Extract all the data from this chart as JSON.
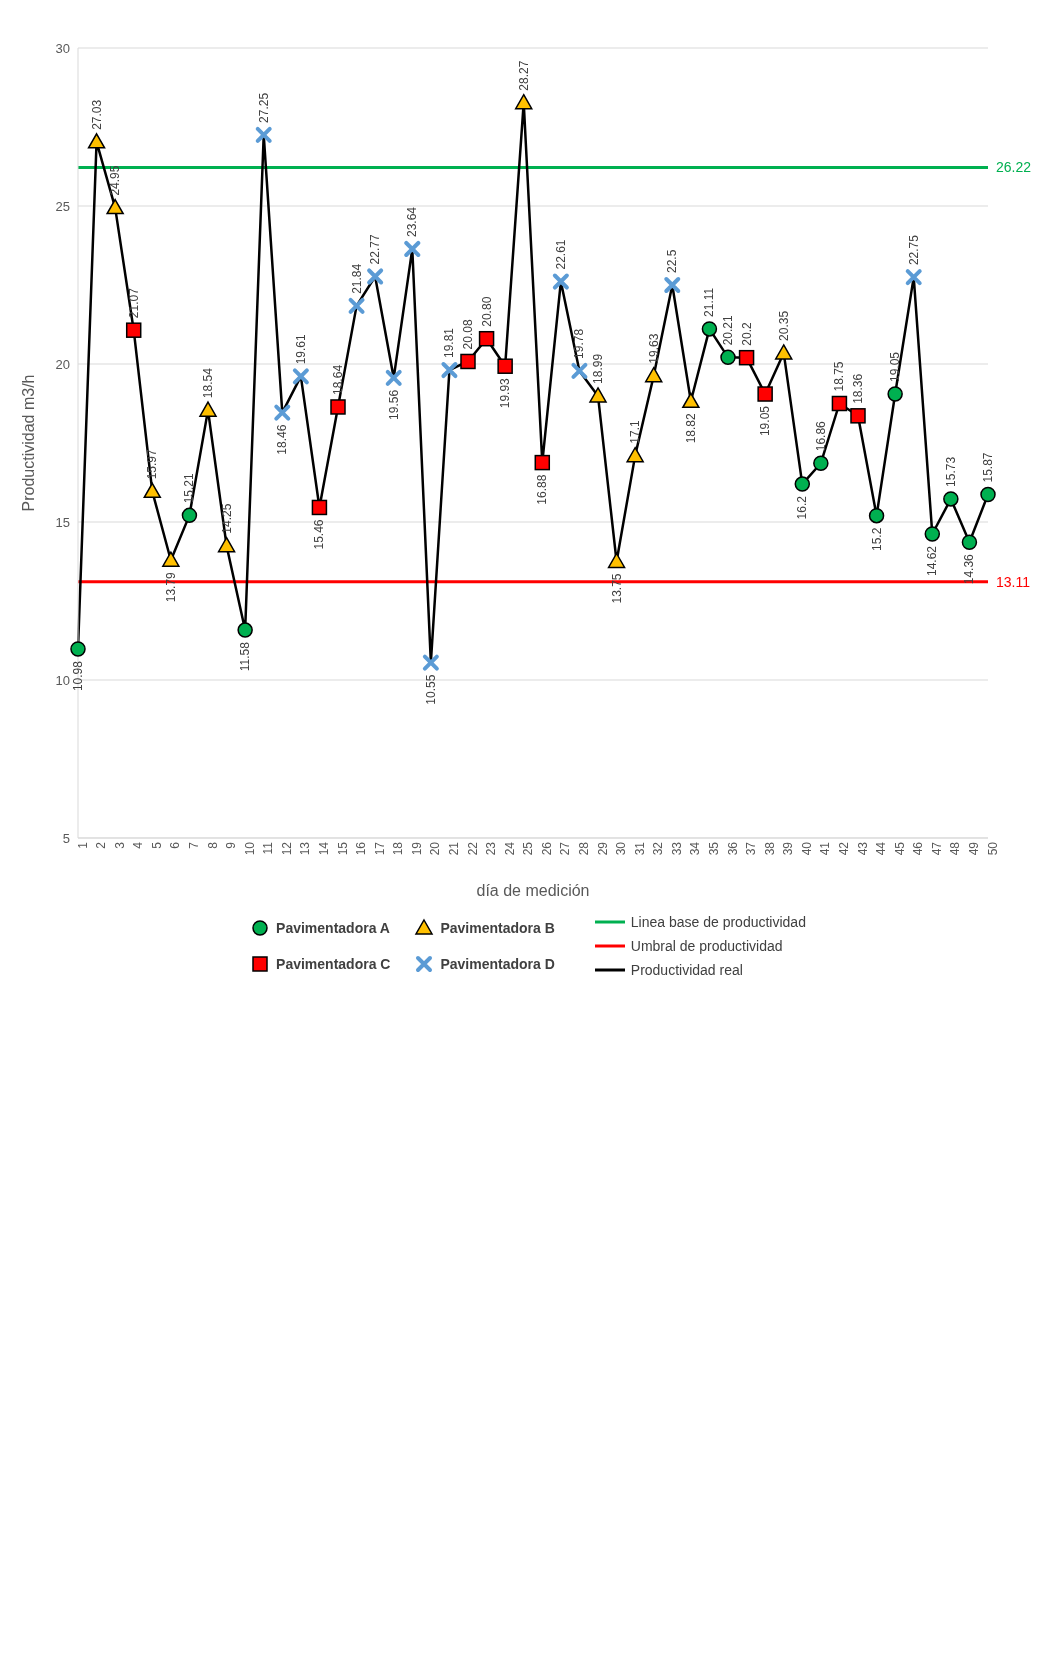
{
  "chart_data": {
    "type": "line",
    "xlabel": "día de medición",
    "ylabel": "Productividad m3/h",
    "categories": [
      "1",
      "2",
      "3",
      "4",
      "5",
      "6",
      "7",
      "8",
      "9",
      "10",
      "11",
      "12",
      "13",
      "14",
      "15",
      "16",
      "17",
      "18",
      "19",
      "20",
      "21",
      "22",
      "23",
      "24",
      "25",
      "26",
      "27",
      "28",
      "29",
      "30",
      "31",
      "32",
      "33",
      "34",
      "35",
      "36",
      "37",
      "38",
      "39",
      "40",
      "41",
      "42",
      "43",
      "44",
      "45",
      "46",
      "47",
      "48",
      "49",
      "50"
    ],
    "ylim": [
      5,
      30
    ],
    "yticks": [
      5,
      10,
      15,
      20,
      25,
      30
    ],
    "grid": "y",
    "legend": "bottom",
    "series": [
      {
        "name": "Linea base de productividad",
        "color": "#00b050",
        "marker": "none",
        "values": [
          26.22,
          26.22,
          26.22,
          26.22,
          26.22,
          26.22,
          26.22,
          26.22,
          26.22,
          26.22,
          26.22,
          26.22,
          26.22,
          26.22,
          26.22,
          26.22,
          26.22,
          26.22,
          26.22,
          26.22,
          26.22,
          26.22,
          26.22,
          26.22,
          26.22,
          26.22,
          26.22,
          26.22,
          26.22,
          26.22,
          26.22,
          26.22,
          26.22,
          26.22,
          26.22,
          26.22,
          26.22,
          26.22,
          26.22,
          26.22,
          26.22,
          26.22,
          26.22,
          26.22,
          26.22,
          26.22,
          26.22,
          26.22,
          26.22,
          26.22
        ],
        "value_labels": [
          null,
          null,
          null,
          null,
          null,
          null,
          null,
          null,
          null,
          null,
          null,
          null,
          null,
          null,
          null,
          null,
          null,
          null,
          null,
          null,
          null,
          null,
          null,
          null,
          null,
          null,
          null,
          null,
          null,
          null,
          null,
          null,
          null,
          null,
          null,
          null,
          null,
          null,
          null,
          null,
          null,
          null,
          null,
          null,
          null,
          null,
          null,
          null,
          null,
          "26.22"
        ]
      },
      {
        "name": "Umbral de productividad",
        "color": "#ff0000",
        "marker": "none",
        "values": [
          13.11,
          13.11,
          13.11,
          13.11,
          13.11,
          13.11,
          13.11,
          13.11,
          13.11,
          13.11,
          13.11,
          13.11,
          13.11,
          13.11,
          13.11,
          13.11,
          13.11,
          13.11,
          13.11,
          13.11,
          13.11,
          13.11,
          13.11,
          13.11,
          13.11,
          13.11,
          13.11,
          13.11,
          13.11,
          13.11,
          13.11,
          13.11,
          13.11,
          13.11,
          13.11,
          13.11,
          13.11,
          13.11,
          13.11,
          13.11,
          13.11,
          13.11,
          13.11,
          13.11,
          13.11,
          13.11,
          13.11,
          13.11,
          13.11,
          13.11
        ],
        "value_labels": [
          null,
          null,
          null,
          null,
          null,
          null,
          null,
          null,
          null,
          null,
          null,
          null,
          null,
          null,
          null,
          null,
          null,
          null,
          null,
          null,
          null,
          null,
          null,
          null,
          null,
          null,
          null,
          null,
          null,
          null,
          null,
          null,
          null,
          null,
          null,
          null,
          null,
          null,
          null,
          null,
          null,
          null,
          null,
          null,
          null,
          null,
          null,
          null,
          null,
          "13.11"
        ]
      },
      {
        "name": "Productividad real",
        "color": "#000000",
        "marker": "none",
        "values": [
          10.98,
          27.03,
          24.95,
          21.07,
          15.97,
          13.79,
          15.21,
          18.54,
          14.25,
          11.58,
          27.25,
          18.46,
          19.61,
          15.46,
          18.64,
          21.84,
          22.77,
          19.56,
          23.64,
          10.55,
          19.81,
          20.08,
          20.8,
          19.93,
          28.27,
          16.88,
          22.61,
          19.78,
          18.99,
          13.75,
          17.1,
          19.63,
          22.5,
          18.82,
          21.11,
          20.21,
          20.2,
          19.05,
          20.35,
          16.2,
          16.86,
          18.75,
          18.36,
          15.2,
          19.05,
          22.75,
          14.62,
          15.73,
          14.36,
          15.87
        ],
        "value_labels": [
          "10.98",
          "27.03",
          "24.95",
          "21.07",
          "15.97",
          "13.79",
          "15.21",
          "18.54",
          "14.25",
          "11.58",
          "27.25",
          "18.46",
          "19.61",
          "15.46",
          "18.64",
          "21.84",
          "22.77",
          "19.56",
          "23.64",
          "10.55",
          "19.81",
          "20.08",
          "20.80",
          "19.93",
          "28.27",
          "16.88",
          "22.61",
          "19.78",
          "18.99",
          "13.75",
          "17.1",
          "19.63",
          "22.5",
          "18.82",
          "21.11",
          "20.21",
          "20.2",
          "19.05",
          "20.35",
          "16.2",
          "16.86",
          "18.75",
          "18.36",
          "15.2",
          "19.05",
          "22.75",
          "14.62",
          "15.73",
          "14.36",
          "15.87"
        ]
      },
      {
        "name": "Pavimentadora A",
        "type": "scatter",
        "color": "#00b050",
        "marker": "circle",
        "x": [
          "1",
          "7",
          "10",
          "35",
          "36",
          "40",
          "41",
          "44",
          "45",
          "47",
          "48",
          "49",
          "50"
        ],
        "values": [
          10.98,
          15.21,
          11.58,
          21.11,
          20.21,
          16.2,
          16.86,
          15.2,
          19.05,
          14.62,
          15.73,
          14.36,
          15.87
        ]
      },
      {
        "name": "Pavimentadora B",
        "type": "scatter",
        "color": "#ffc000",
        "marker": "triangle",
        "x": [
          "2",
          "3",
          "5",
          "6",
          "8",
          "9",
          "25",
          "29",
          "30",
          "31",
          "32",
          "34",
          "39"
        ],
        "values": [
          27.03,
          24.95,
          15.97,
          13.79,
          18.54,
          14.25,
          28.27,
          18.99,
          13.75,
          17.1,
          19.63,
          18.82,
          20.35
        ]
      },
      {
        "name": "Pavimentadora C",
        "type": "scatter",
        "color": "#ff0000",
        "marker": "square",
        "x": [
          "4",
          "14",
          "15",
          "22",
          "23",
          "24",
          "26",
          "37",
          "38",
          "42",
          "43"
        ],
        "values": [
          21.07,
          15.46,
          18.64,
          20.08,
          20.8,
          19.93,
          16.88,
          20.2,
          19.05,
          18.75,
          18.36
        ]
      },
      {
        "name": "Pavimentadora D",
        "type": "scatter",
        "color": "#5b9bd5",
        "marker": "cross",
        "x": [
          "11",
          "12",
          "13",
          "16",
          "17",
          "18",
          "19",
          "20",
          "21",
          "27",
          "28",
          "33",
          "46"
        ],
        "values": [
          27.25,
          18.46,
          19.61,
          21.84,
          22.77,
          19.56,
          23.64,
          10.55,
          19.81,
          22.61,
          19.78,
          22.5,
          22.75
        ]
      }
    ]
  }
}
